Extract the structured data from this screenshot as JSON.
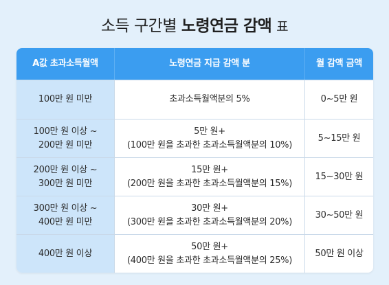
{
  "title": {
    "part1": "소득 구간별",
    "part2": "노령연금 감액",
    "part3": "표"
  },
  "table": {
    "headers": [
      "A값 초과소득월액",
      "노령연금 지급 감액 분",
      "월 감액 금액"
    ],
    "rows": [
      {
        "range": [
          "100만 원 미만"
        ],
        "reduction": [
          "초과소득월액분의 5%"
        ],
        "amount": "0~5만 원"
      },
      {
        "range": [
          "100만 원 이상 ~",
          "200만 원 미만"
        ],
        "reduction": [
          "5만 원+",
          "(100만 원을 초과한 초과소득월액분의 10%)"
        ],
        "amount": "5~15만 원"
      },
      {
        "range": [
          "200만 원 이상 ~",
          "300만 원 미만"
        ],
        "reduction": [
          "15만 원+",
          "(200만 원을 초과한 초과소득월액분의 15%)"
        ],
        "amount": "15~30만 원"
      },
      {
        "range": [
          "300만 원 이상 ~",
          "400만 원 미만"
        ],
        "reduction": [
          "30만 원+",
          "(300만 원을 초과한 초과소득월액분의 20%)"
        ],
        "amount": "30~50만 원"
      },
      {
        "range": [
          "400만 원 이상"
        ],
        "reduction": [
          "50만 원+",
          "(400만 원을 초과한 초과소득월액분의 25%)"
        ],
        "amount": "50만 원 이상"
      }
    ]
  }
}
